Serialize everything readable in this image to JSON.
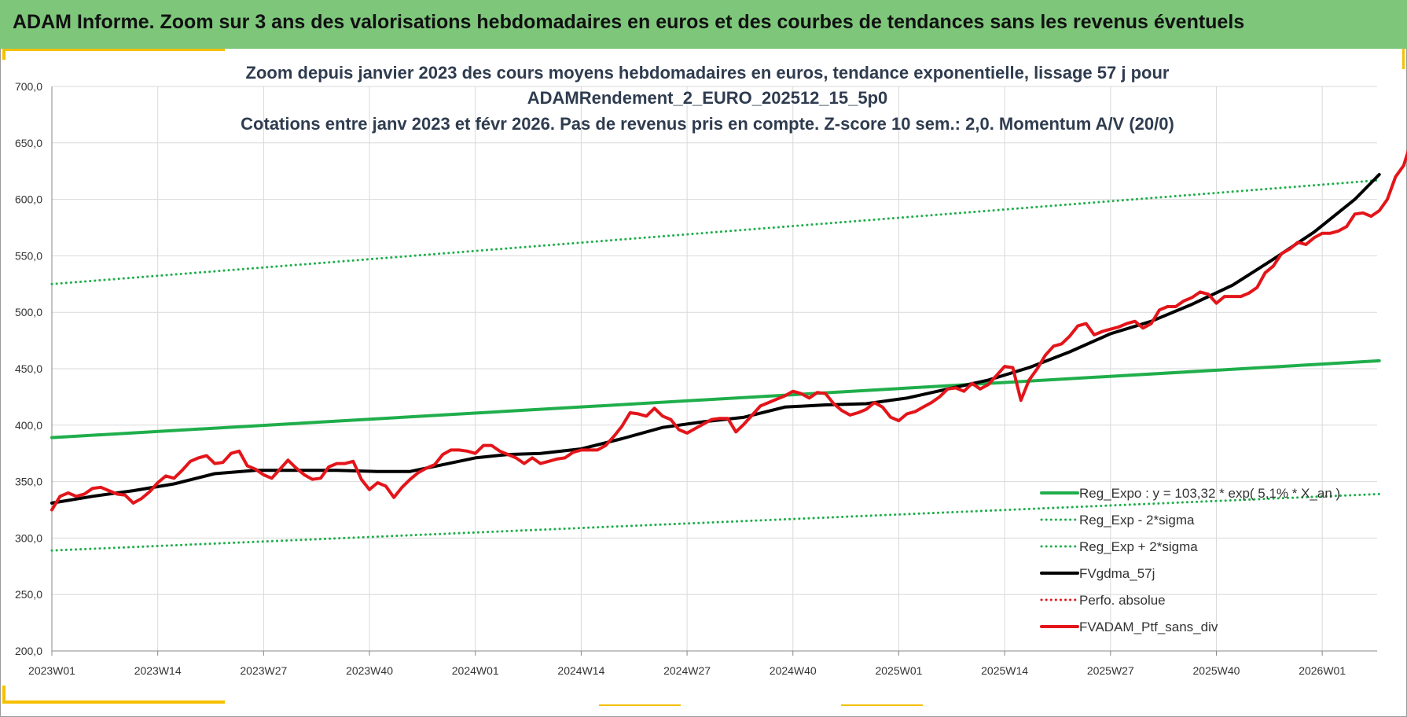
{
  "header": {
    "title": "ADAM Informe. Zoom sur 3 ans des valorisations hebdomadaires en euros et des courbes de tendances sans les revenus éventuels"
  },
  "colors": {
    "header_bg": "#7dc67a",
    "accent": "#f5c000",
    "trend_green": "#1fae4b",
    "sigma_green": "#1fae4b",
    "moving_average": "#000000",
    "portfolio_red": "#e3151a"
  },
  "chart_data": {
    "type": "line",
    "title_lines": [
      "Zoom depuis janvier 2023 des cours moyens hebdomadaires  en euros, tendance exponentielle, lissage 57 j pour",
      "ADAMRendement_2_EURO_202512_15_5p0",
      "Cotations  entre janv 2023 et févr 2026. Pas de revenus pris en compte. Z-score 10 sem.: 2,0. Momentum A/V (20/0)"
    ],
    "x_axis": {
      "unit": "week index since 2023W01",
      "range": [
        0,
        163
      ],
      "ticks": [
        {
          "pos": 0,
          "label": "2023W01"
        },
        {
          "pos": 13,
          "label": "2023W14"
        },
        {
          "pos": 26,
          "label": "2023W27"
        },
        {
          "pos": 39,
          "label": "2023W40"
        },
        {
          "pos": 52,
          "label": "2024W01"
        },
        {
          "pos": 65,
          "label": "2024W14"
        },
        {
          "pos": 78,
          "label": "2024W27"
        },
        {
          "pos": 91,
          "label": "2024W40"
        },
        {
          "pos": 104,
          "label": "2025W01"
        },
        {
          "pos": 117,
          "label": "2025W14"
        },
        {
          "pos": 130,
          "label": "2025W27"
        },
        {
          "pos": 143,
          "label": "2025W40"
        },
        {
          "pos": 156,
          "label": "2026W01"
        }
      ]
    },
    "y_axis": {
      "range": [
        200,
        700
      ],
      "ticks": [
        "200,0",
        "250,0",
        "300,0",
        "350,0",
        "400,0",
        "450,0",
        "500,0",
        "550,0",
        "600,0",
        "650,0",
        "700,0"
      ],
      "tick_values": [
        200,
        250,
        300,
        350,
        400,
        450,
        500,
        550,
        600,
        650,
        700
      ]
    },
    "grid": true,
    "legend_position": "right",
    "series": [
      {
        "name": "Reg_Expo : y = 103,32 * exp( 5,1% * X_an )",
        "style": "solid",
        "color": "#1fae4b",
        "width": 4,
        "points": [
          [
            0,
            389
          ],
          [
            163,
            457
          ]
        ]
      },
      {
        "name": "Reg_Exp - 2*sigma",
        "style": "dotted",
        "color": "#1fae4b",
        "width": 3,
        "points": [
          [
            0,
            289
          ],
          [
            163,
            339
          ]
        ]
      },
      {
        "name": "Reg_Exp + 2*sigma",
        "style": "dotted",
        "color": "#1fae4b",
        "width": 3,
        "points": [
          [
            0,
            525
          ],
          [
            163,
            617
          ]
        ]
      },
      {
        "name": "FVgdma_57j",
        "style": "solid",
        "color": "#000000",
        "width": 4,
        "points": [
          [
            0,
            331
          ],
          [
            5,
            337
          ],
          [
            10,
            342
          ],
          [
            15,
            348
          ],
          [
            20,
            357
          ],
          [
            25,
            360
          ],
          [
            30,
            360
          ],
          [
            35,
            360
          ],
          [
            40,
            359
          ],
          [
            44,
            359
          ],
          [
            48,
            365
          ],
          [
            52,
            371
          ],
          [
            56,
            374
          ],
          [
            60,
            375
          ],
          [
            65,
            379
          ],
          [
            70,
            388
          ],
          [
            75,
            398
          ],
          [
            80,
            403
          ],
          [
            85,
            407
          ],
          [
            90,
            416
          ],
          [
            95,
            418
          ],
          [
            100,
            419
          ],
          [
            105,
            424
          ],
          [
            110,
            432
          ],
          [
            115,
            440
          ],
          [
            120,
            451
          ],
          [
            125,
            465
          ],
          [
            130,
            481
          ],
          [
            135,
            492
          ],
          [
            140,
            507
          ],
          [
            145,
            524
          ],
          [
            150,
            547
          ],
          [
            155,
            571
          ],
          [
            160,
            600
          ],
          [
            163,
            622
          ]
        ]
      },
      {
        "name": "Perfo. absolue",
        "style": "dotted",
        "color": "#e3151a",
        "width": 3,
        "points": []
      },
      {
        "name": "FVADAM_Ptf_sans_div",
        "style": "solid",
        "color": "#e3151a",
        "width": 4,
        "points": [
          [
            0,
            325
          ],
          [
            1,
            337
          ],
          [
            2,
            340
          ],
          [
            3,
            337
          ],
          [
            4,
            339
          ],
          [
            5,
            344
          ],
          [
            6,
            345
          ],
          [
            7,
            342
          ],
          [
            8,
            339
          ],
          [
            9,
            338
          ],
          [
            10,
            331
          ],
          [
            11,
            335
          ],
          [
            12,
            341
          ],
          [
            13,
            349
          ],
          [
            14,
            355
          ],
          [
            15,
            353
          ],
          [
            16,
            360
          ],
          [
            17,
            368
          ],
          [
            18,
            371
          ],
          [
            19,
            373
          ],
          [
            20,
            366
          ],
          [
            21,
            367
          ],
          [
            22,
            375
          ],
          [
            23,
            377
          ],
          [
            24,
            364
          ],
          [
            25,
            361
          ],
          [
            26,
            356
          ],
          [
            27,
            353
          ],
          [
            28,
            361
          ],
          [
            29,
            369
          ],
          [
            30,
            362
          ],
          [
            31,
            356
          ],
          [
            32,
            352
          ],
          [
            33,
            353
          ],
          [
            34,
            363
          ],
          [
            35,
            366
          ],
          [
            36,
            366
          ],
          [
            37,
            368
          ],
          [
            38,
            352
          ],
          [
            39,
            343
          ],
          [
            40,
            349
          ],
          [
            41,
            346
          ],
          [
            42,
            336
          ],
          [
            43,
            345
          ],
          [
            44,
            352
          ],
          [
            45,
            358
          ],
          [
            46,
            362
          ],
          [
            47,
            365
          ],
          [
            48,
            374
          ],
          [
            49,
            378
          ],
          [
            50,
            378
          ],
          [
            51,
            377
          ],
          [
            52,
            375
          ],
          [
            53,
            382
          ],
          [
            54,
            382
          ],
          [
            55,
            377
          ],
          [
            56,
            374
          ],
          [
            57,
            371
          ],
          [
            58,
            366
          ],
          [
            59,
            371
          ],
          [
            60,
            366
          ],
          [
            61,
            368
          ],
          [
            62,
            370
          ],
          [
            63,
            371
          ],
          [
            64,
            376
          ],
          [
            65,
            378
          ],
          [
            66,
            378
          ],
          [
            67,
            378
          ],
          [
            68,
            382
          ],
          [
            69,
            390
          ],
          [
            70,
            399
          ],
          [
            71,
            411
          ],
          [
            72,
            410
          ],
          [
            73,
            408
          ],
          [
            74,
            415
          ],
          [
            75,
            408
          ],
          [
            76,
            405
          ],
          [
            77,
            396
          ],
          [
            78,
            393
          ],
          [
            79,
            397
          ],
          [
            80,
            401
          ],
          [
            81,
            405
          ],
          [
            82,
            406
          ],
          [
            83,
            406
          ],
          [
            84,
            394
          ],
          [
            85,
            401
          ],
          [
            86,
            409
          ],
          [
            87,
            417
          ],
          [
            88,
            420
          ],
          [
            89,
            423
          ],
          [
            90,
            426
          ],
          [
            91,
            430
          ],
          [
            92,
            428
          ],
          [
            93,
            424
          ],
          [
            94,
            429
          ],
          [
            95,
            428
          ],
          [
            96,
            419
          ],
          [
            97,
            413
          ],
          [
            98,
            409
          ],
          [
            99,
            411
          ],
          [
            100,
            414
          ],
          [
            101,
            420
          ],
          [
            102,
            416
          ],
          [
            103,
            407
          ],
          [
            104,
            404
          ],
          [
            105,
            410
          ],
          [
            106,
            412
          ],
          [
            107,
            416
          ],
          [
            108,
            420
          ],
          [
            109,
            425
          ],
          [
            110,
            432
          ],
          [
            111,
            433
          ],
          [
            112,
            430
          ],
          [
            113,
            437
          ],
          [
            114,
            432
          ],
          [
            115,
            436
          ],
          [
            116,
            444
          ],
          [
            117,
            452
          ],
          [
            118,
            451
          ],
          [
            119,
            422
          ],
          [
            120,
            440
          ],
          [
            121,
            450
          ],
          [
            122,
            462
          ],
          [
            123,
            470
          ],
          [
            124,
            472
          ],
          [
            125,
            479
          ],
          [
            126,
            488
          ],
          [
            127,
            490
          ],
          [
            128,
            480
          ],
          [
            129,
            483
          ],
          [
            130,
            485
          ],
          [
            131,
            487
          ],
          [
            132,
            490
          ],
          [
            133,
            492
          ],
          [
            134,
            486
          ],
          [
            135,
            490
          ],
          [
            136,
            502
          ],
          [
            137,
            505
          ],
          [
            138,
            505
          ],
          [
            139,
            510
          ],
          [
            140,
            513
          ],
          [
            141,
            518
          ],
          [
            142,
            516
          ],
          [
            143,
            508
          ],
          [
            144,
            514
          ],
          [
            145,
            514
          ],
          [
            146,
            514
          ],
          [
            147,
            517
          ],
          [
            148,
            522
          ],
          [
            149,
            535
          ],
          [
            150,
            541
          ],
          [
            151,
            552
          ],
          [
            152,
            556
          ],
          [
            153,
            562
          ],
          [
            154,
            560
          ],
          [
            155,
            566
          ],
          [
            156,
            570
          ],
          [
            157,
            570
          ],
          [
            158,
            572
          ],
          [
            159,
            576
          ],
          [
            160,
            587
          ],
          [
            161,
            588
          ],
          [
            162,
            585
          ],
          [
            163,
            590
          ],
          [
            164,
            600
          ],
          [
            165,
            620
          ],
          [
            166,
            630
          ],
          [
            167,
            653
          ]
        ]
      }
    ]
  }
}
